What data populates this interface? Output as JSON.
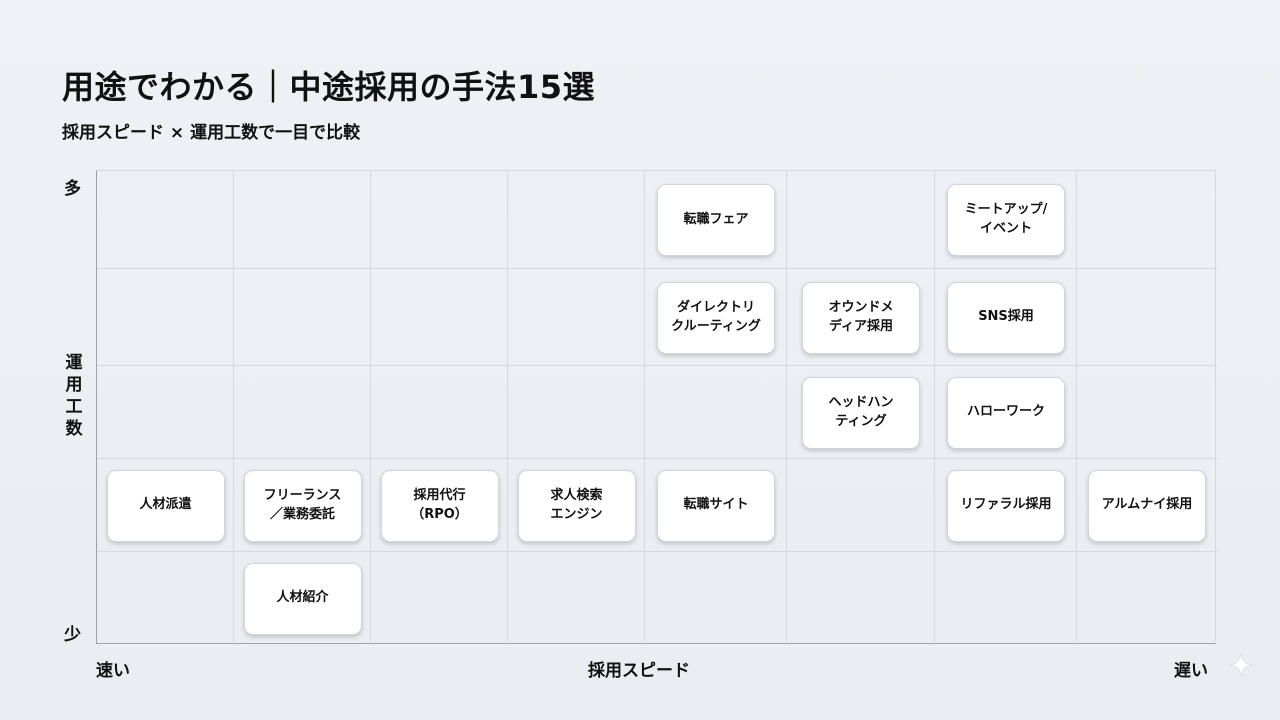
{
  "title": "用途でわかる｜中途採用の手法15選",
  "subtitle": "採用スピード × 運用工数で一目で比較",
  "axes": {
    "y_label": "運用工数",
    "y_high": "多",
    "y_low": "少",
    "x_label": "採用スピード",
    "x_fast": "速い",
    "x_slow": "遅い"
  },
  "grid": {
    "columns": 8,
    "rows": 5
  },
  "methods": [
    {
      "label": "転職フェア",
      "speed_col": 5,
      "effort_row": 5
    },
    {
      "label": "ミートアップ/\nイベント",
      "speed_col": 7,
      "effort_row": 5
    },
    {
      "label": "ダイレクトリ\nクルーティング",
      "speed_col": 5,
      "effort_row": 4
    },
    {
      "label": "オウンドメ\nディア採用",
      "speed_col": 6,
      "effort_row": 4
    },
    {
      "label": "SNS採用",
      "speed_col": 7,
      "effort_row": 4
    },
    {
      "label": "ヘッドハン\nティング",
      "speed_col": 6,
      "effort_row": 3
    },
    {
      "label": "ハローワーク",
      "speed_col": 7,
      "effort_row": 3
    },
    {
      "label": "人材派遣",
      "speed_col": 1,
      "effort_row": 2
    },
    {
      "label": "フリーランス\n／業務委託",
      "speed_col": 2,
      "effort_row": 2
    },
    {
      "label": "採用代行\n（RPO）",
      "speed_col": 3,
      "effort_row": 2
    },
    {
      "label": "求人検索\nエンジン",
      "speed_col": 4,
      "effort_row": 2
    },
    {
      "label": "転職サイト",
      "speed_col": 5,
      "effort_row": 2
    },
    {
      "label": "リファラル採用",
      "speed_col": 7,
      "effort_row": 2
    },
    {
      "label": "アルムナイ採用",
      "speed_col": 8,
      "effort_row": 2
    },
    {
      "label": "人材紹介",
      "speed_col": 2,
      "effort_row": 1
    }
  ],
  "icons": {
    "corner": "sparkle-icon"
  }
}
